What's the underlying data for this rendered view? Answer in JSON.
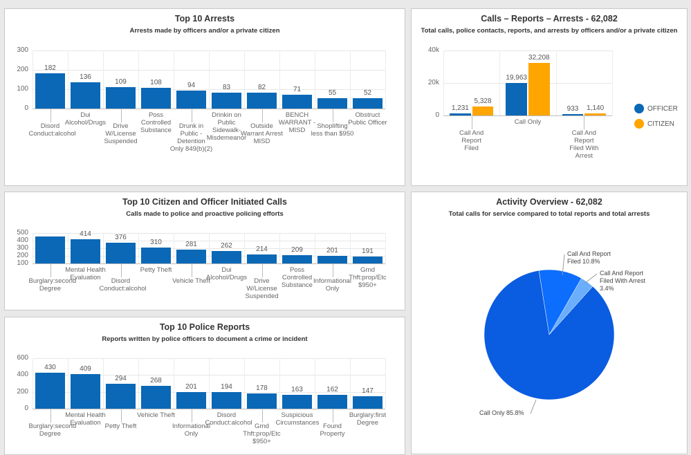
{
  "colors": {
    "bar": "#0a68b6",
    "officer": "#0a68b6",
    "citizen": "#ffa500",
    "pie": [
      "#0a5ce0",
      "#0d6dfc",
      "#6aaefc"
    ]
  },
  "chart_data": [
    {
      "id": "arrests",
      "type": "bar",
      "title": "Top 10 Arrests",
      "subtitle": "Arrests made by officers and/or a private citizen",
      "categories": [
        "Disord Conduct:alcohol",
        "Dui Alcohol/Drugs",
        "Drive W/License Suspended",
        "Poss Controlled Substance",
        "Drunk in Public - Detention Only 849(b)(2)",
        "Drinkin on Public Sidewalk-Misdemeanor",
        "Outside Warrant Arrest MISD",
        "BENCH WARRANT - MISD",
        "Shoplifting less than $950",
        "Obstruct Public Officer"
      ],
      "values": [
        182,
        136,
        109,
        108,
        94,
        83,
        82,
        71,
        55,
        52
      ],
      "ylim": [
        0,
        300
      ],
      "yticks": [
        "0",
        "100",
        "200",
        "300"
      ],
      "grid": true
    },
    {
      "id": "calls",
      "type": "bar",
      "title": "Top 10 Citizen and Officer Initiated Calls",
      "subtitle": "Calls made to police and proactive policing efforts",
      "categories": [
        "Burglary:second Degree",
        "Mental Health Evaluation",
        "Disord Conduct:alcohol",
        "Petty Theft",
        "Vehicle Theft",
        "Dui Alcohol/Drugs",
        "Drive W/License Suspended",
        "Poss Controlled Substance",
        "Informational Only",
        "Grnd Thft:prop/Etc $950+"
      ],
      "values": [
        455,
        414,
        376,
        310,
        281,
        262,
        214,
        209,
        201,
        191
      ],
      "value_labels": [
        "",
        "414",
        "376",
        "310",
        "281",
        "262",
        "214",
        "209",
        "201",
        "191"
      ],
      "ylim": [
        100,
        500
      ],
      "yticks": [
        "100",
        "200",
        "300",
        "400",
        "500"
      ],
      "grid": true
    },
    {
      "id": "reports",
      "type": "bar",
      "title": "Top 10 Police Reports",
      "subtitle": "Reports written by police officers to document a crime or incident",
      "categories": [
        "Burglary:second Degree",
        "Mental Health Evaluation",
        "Petty Theft",
        "Vehicle Theft",
        "Informational Only",
        "Disord Conduct:alcohol",
        "Grnd Thft:prop/Etc $950+",
        "Suspicious Circumstances",
        "Found Property",
        "Burglary:first Degree"
      ],
      "values": [
        430,
        409,
        294,
        268,
        201,
        194,
        178,
        163,
        162,
        147
      ],
      "ylim": [
        0,
        600
      ],
      "yticks": [
        "0",
        "200",
        "400",
        "600"
      ],
      "grid": true
    },
    {
      "id": "crr",
      "type": "bar",
      "title": "Calls – Reports – Arrests - 62,082",
      "subtitle": "Total calls, police contacts, reports, and arrests by officers and/or a private citizen",
      "categories": [
        "Call And Report Filed",
        "Call Only",
        "Call And Report Filed With Arrest"
      ],
      "series": [
        {
          "name": "OFFICER",
          "values": [
            1231,
            19963,
            933
          ],
          "labels": [
            "1,231",
            "19,963",
            "933"
          ]
        },
        {
          "name": "CITIZEN",
          "values": [
            5328,
            32208,
            1140
          ],
          "labels": [
            "5,328",
            "32,208",
            "1,140"
          ]
        }
      ],
      "ylim": [
        0,
        40000
      ],
      "yticks": [
        "0",
        "20k",
        "40k"
      ],
      "legend": "right",
      "grid": true
    },
    {
      "id": "activity",
      "type": "pie",
      "title": "Activity Overview - 62,082",
      "subtitle": "Total calls for service compared to total reports and total arrests",
      "slices": [
        {
          "label": "Call Only 85.8%",
          "value": 85.8
        },
        {
          "label": "Call And Report Filed 10.8%",
          "value": 10.8
        },
        {
          "label": "Call And Report Filed With Arrest 3.4%",
          "value": 3.4
        }
      ]
    }
  ]
}
